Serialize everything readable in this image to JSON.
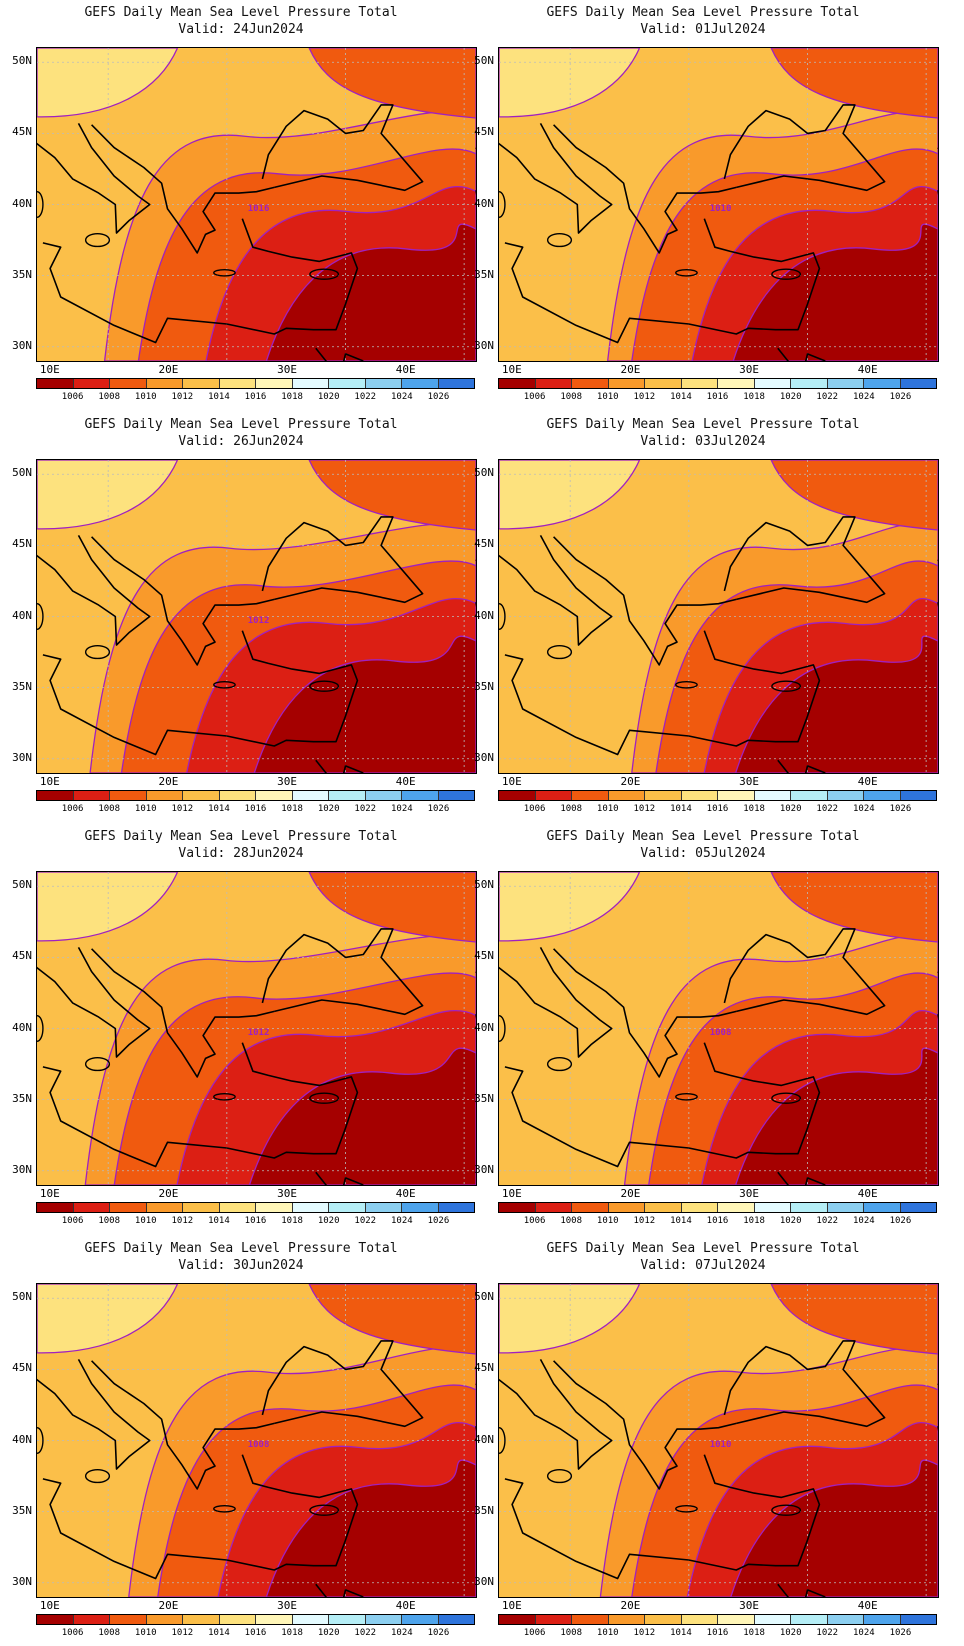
{
  "panels": [
    {
      "title": "GEFS Daily Mean Sea Level Pressure Total",
      "valid": "Valid: 24Jun2024",
      "label": "1016",
      "fill": [
        0.28,
        0.42,
        0.7,
        0.95
      ]
    },
    {
      "title": "GEFS Daily Mean Sea Level Pressure Total",
      "valid": "Valid: 01Jul2024",
      "label": "1010",
      "fill": [
        0.45,
        0.55,
        0.8,
        0.97
      ]
    },
    {
      "title": "GEFS Daily Mean Sea Level Pressure Total",
      "valid": "Valid: 26Jun2024",
      "label": "1012",
      "fill": [
        0.22,
        0.35,
        0.62,
        0.9
      ]
    },
    {
      "title": "GEFS Daily Mean Sea Level Pressure Total",
      "valid": "Valid: 03Jul2024",
      "label": "",
      "fill": [
        0.55,
        0.65,
        0.85,
        0.98
      ]
    },
    {
      "title": "GEFS Daily Mean Sea Level Pressure Total",
      "valid": "Valid: 28Jun2024",
      "label": "1012",
      "fill": [
        0.2,
        0.32,
        0.58,
        0.88
      ]
    },
    {
      "title": "GEFS Daily Mean Sea Level Pressure Total",
      "valid": "Valid: 05Jul2024",
      "label": "1008",
      "fill": [
        0.52,
        0.62,
        0.84,
        0.98
      ]
    },
    {
      "title": "GEFS Daily Mean Sea Level Pressure Total",
      "valid": "Valid: 30Jun2024",
      "label": "1008",
      "fill": [
        0.38,
        0.5,
        0.75,
        0.95
      ]
    },
    {
      "title": "GEFS Daily Mean Sea Level Pressure Total",
      "valid": "Valid: 07Jul2024",
      "label": "1010",
      "fill": [
        0.42,
        0.55,
        0.78,
        0.96
      ]
    }
  ],
  "y_ticks": [
    "50N",
    "45N",
    "40N",
    "35N",
    "30N"
  ],
  "x_ticks": [
    "10E",
    "20E",
    "30E",
    "40E"
  ],
  "colorbar": {
    "ticks": [
      "1006",
      "1008",
      "1010",
      "1012",
      "1014",
      "1016",
      "1018",
      "1020",
      "1022",
      "1024",
      "1026"
    ],
    "colors": [
      "#a50000",
      "#dc1f14",
      "#f05a0f",
      "#f99a2b",
      "#fbbf49",
      "#fde27e",
      "#fff6b8",
      "#e4fbff",
      "#b5eef6",
      "#8ccff0",
      "#4ea4ec",
      "#2e74dc"
    ]
  },
  "colors": {
    "contour": "#a020c0",
    "coast": "#000000",
    "grid": "#bbbbbb"
  }
}
